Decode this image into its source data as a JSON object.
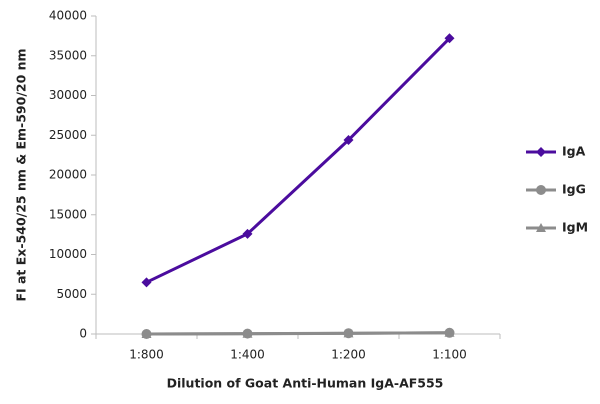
{
  "chart_data": {
    "type": "line",
    "y_label": "FI at Ex-540/25 nm & Em-590/20 nm",
    "x_label": "Dilution of Goat Anti-Human IgA-AF555",
    "categories": [
      "1:800",
      "1:400",
      "1:200",
      "1:100"
    ],
    "series": [
      {
        "name": "IgA",
        "color": "#4b0c9e",
        "marker": "diamond",
        "values": [
          6500,
          12600,
          24400,
          37200
        ]
      },
      {
        "name": "IgG",
        "color": "#8c8c8c",
        "marker": "circle",
        "values": [
          0,
          50,
          100,
          150
        ]
      },
      {
        "name": "IgM",
        "color": "#8c8c8c",
        "marker": "triangle",
        "values": [
          0,
          30,
          80,
          150
        ]
      }
    ],
    "ylim": [
      0,
      40000
    ],
    "yticks": [
      0,
      5000,
      10000,
      15000,
      20000,
      25000,
      30000,
      35000,
      40000
    ],
    "grid": false,
    "legend": "right"
  }
}
